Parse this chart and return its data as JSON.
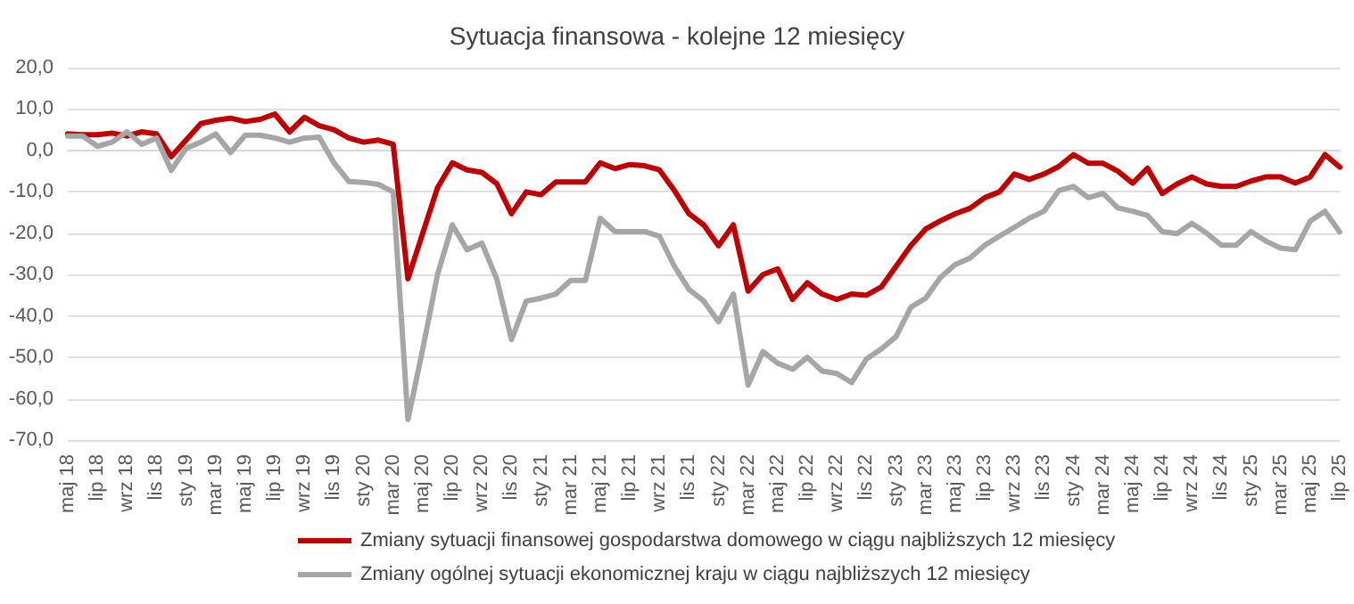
{
  "chart_data": {
    "type": "line",
    "title": "Sytuacja finansowa - kolejne 12 miesięcy",
    "categories": [
      "maj 18",
      null,
      "lip 18",
      null,
      "wrz 18",
      null,
      "lis 18",
      null,
      "sty 19",
      null,
      "mar 19",
      null,
      "maj 19",
      null,
      "lip 19",
      null,
      "wrz 19",
      null,
      "lis 19",
      null,
      "sty 20",
      null,
      "mar 20",
      null,
      "maj 20",
      null,
      "lip 20",
      null,
      "wrz 20",
      null,
      "lis 20",
      null,
      "sty 21",
      null,
      "mar 21",
      null,
      "maj 21",
      null,
      "lip 21",
      null,
      "wrz 21",
      null,
      "lis 21",
      null,
      "sty 22",
      null,
      "mar 22",
      null,
      "maj 22",
      null,
      "lip 22",
      null,
      "wrz 22",
      null,
      "lis 22",
      null,
      "sty 23",
      null,
      "mar 23",
      null,
      "maj 23",
      null,
      "lip 23",
      null,
      "wrz 23",
      null,
      "lis 23",
      null,
      "sty 24",
      null,
      "mar 24",
      null,
      "maj 24",
      null,
      "lip 24",
      null,
      "wrz 24",
      null,
      "lis 24",
      null,
      "sty 25",
      null,
      "mar 25",
      null,
      "maj 25",
      null,
      "lip 25"
    ],
    "series": [
      {
        "name": "Zmiany sytuacji finansowej gospodarstwa domowego w ciągu najbliższych 12 miesięcy",
        "color": "#c00000",
        "values": [
          4,
          3.8,
          3.8,
          4.2,
          3.5,
          4.5,
          4,
          -1.5,
          2.5,
          6.5,
          7.3,
          7.8,
          7,
          7.5,
          8.8,
          4.5,
          8,
          6,
          5,
          3,
          2,
          2.5,
          1.5,
          -31,
          -20,
          -9,
          -3,
          -4.7,
          -5.3,
          -8,
          -15.3,
          -10,
          -10.7,
          -7.6,
          -7.6,
          -7.6,
          -3,
          -4.4,
          -3.4,
          -3.7,
          -4.7,
          -9.6,
          -15.3,
          -18,
          -23,
          -18,
          -34,
          -30,
          -28.6,
          -36,
          -32,
          -34.7,
          -36,
          -34.7,
          -35,
          -33,
          -28,
          -23,
          -19,
          -17,
          -15.3,
          -14,
          -11.4,
          -10,
          -5.7,
          -7,
          -5.7,
          -3.9,
          -1,
          -3.1,
          -3.1,
          -5,
          -7.9,
          -4.3,
          -10.4,
          -8.1,
          -6.4,
          -8.1,
          -8.7,
          -8.7,
          -7.4,
          -6.4,
          -6.4,
          -7.9,
          -6.4,
          -1,
          -4
        ]
      },
      {
        "name": "Zmiany ogólnej sytuacji ekonomicznej kraju w ciągu najbliższych 12 miesięcy",
        "color": "#a6a6a6",
        "values": [
          3.5,
          3.5,
          1,
          2,
          4.5,
          1.5,
          3,
          -4.8,
          0.5,
          2,
          4,
          -0.5,
          3.7,
          3.7,
          3,
          2,
          3,
          3.2,
          -3,
          -7.5,
          -7.7,
          -8.2,
          -10,
          -65,
          -48,
          -30,
          -18,
          -24,
          -22.4,
          -31,
          -45.7,
          -36.4,
          -35.7,
          -34.7,
          -31.4,
          -31.4,
          -16.4,
          -19.6,
          -19.6,
          -19.6,
          -20.7,
          -27.9,
          -33.6,
          -36.4,
          -41.4,
          -34.7,
          -56.7,
          -48.6,
          -51.4,
          -52.9,
          -50,
          -53.3,
          -53.9,
          -56.1,
          -50.4,
          -48,
          -45,
          -37.9,
          -35.7,
          -30.7,
          -27.6,
          -26,
          -22.9,
          -20.7,
          -18.6,
          -16.4,
          -14.7,
          -9.7,
          -8.7,
          -11.4,
          -10.4,
          -13.9,
          -14.7,
          -15.7,
          -19.6,
          -20.1,
          -17.6,
          -20,
          -22.9,
          -22.9,
          -19.6,
          -21.9,
          -23.6,
          -24,
          -17.1,
          -14.7,
          -19.7
        ]
      }
    ],
    "ylim": [
      -70,
      20
    ],
    "yticks": [
      {
        "value": -70,
        "label": "-70,0"
      },
      {
        "value": -60,
        "label": "-60,0"
      },
      {
        "value": -50,
        "label": "-50,0"
      },
      {
        "value": -40,
        "label": "-40,0"
      },
      {
        "value": -30,
        "label": "-30,0"
      },
      {
        "value": -20,
        "label": "-20,0"
      },
      {
        "value": -10,
        "label": "-10,0"
      },
      {
        "value": 0,
        "label": "0,0"
      },
      {
        "value": 10,
        "label": "10,0"
      },
      {
        "value": 20,
        "label": "20,0"
      }
    ],
    "grid": "y",
    "legend": "bottom",
    "marker": "none",
    "line_style": "solid"
  }
}
